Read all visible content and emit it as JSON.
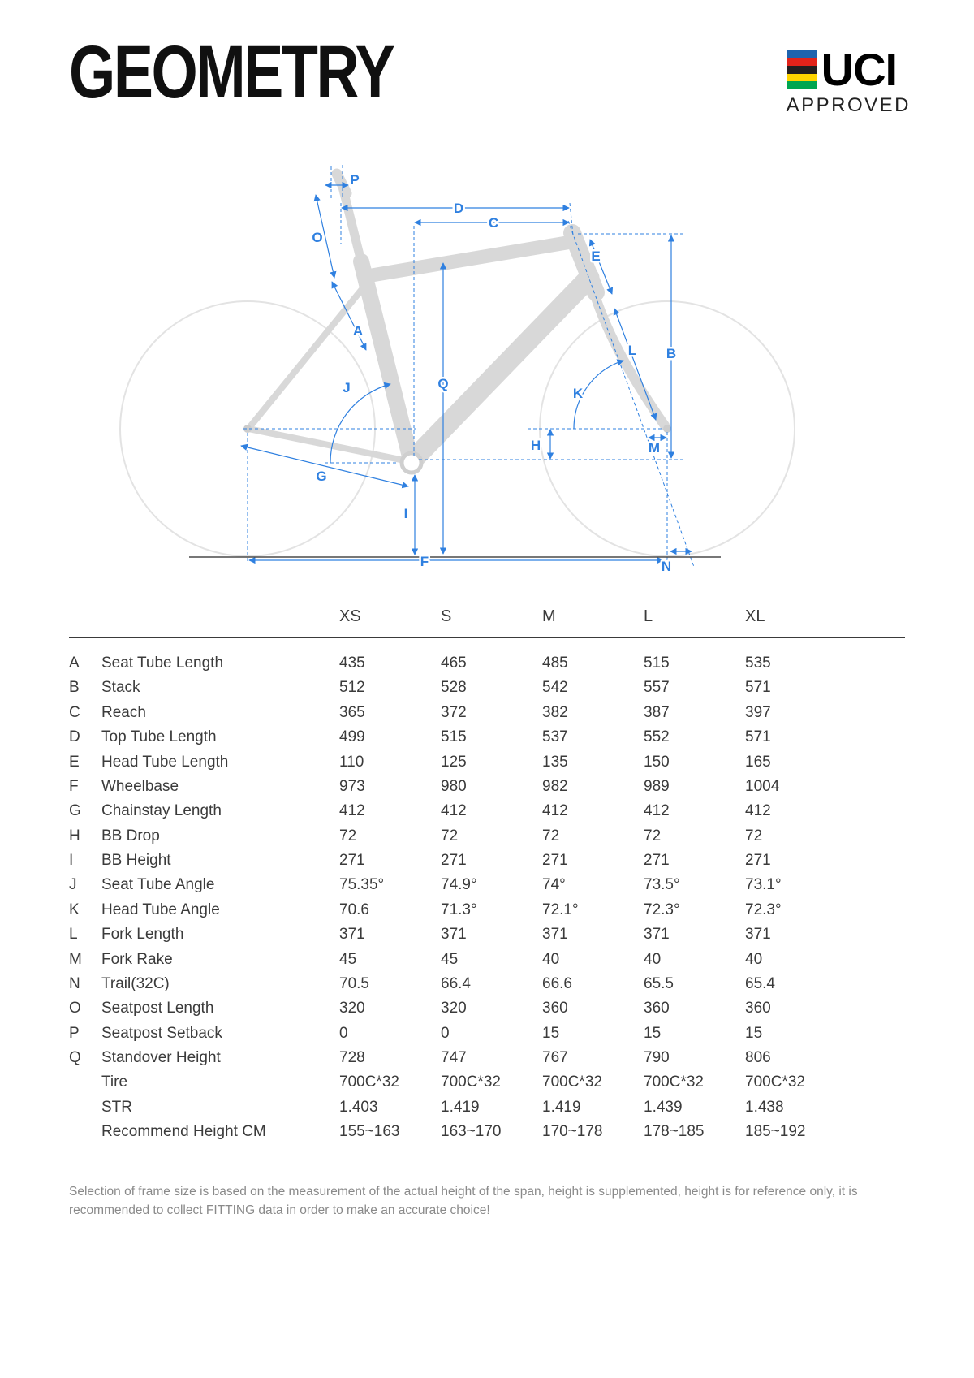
{
  "page": {
    "title": "GEOMETRY"
  },
  "logo": {
    "text": "UCI",
    "subtext": "APPROVED",
    "stripes": [
      "#1f63ae",
      "#e2231a",
      "#231f20",
      "#ffd400",
      "#00a650"
    ]
  },
  "accent_color": "#2f80e0",
  "diagram": {
    "labels": {
      "a": "A",
      "b": "B",
      "c": "C",
      "d": "D",
      "e": "E",
      "f": "F",
      "g": "G",
      "h": "H",
      "i": "I",
      "j": "J",
      "k": "K",
      "l": "L",
      "m": "M",
      "n": "N",
      "o": "O",
      "p": "P",
      "q": "Q"
    }
  },
  "table": {
    "sizes": [
      "XS",
      "S",
      "M",
      "L",
      "XL"
    ],
    "rows": [
      {
        "key": "A",
        "name": "Seat Tube Length",
        "values": [
          "435",
          "465",
          "485",
          "515",
          "535"
        ]
      },
      {
        "key": "B",
        "name": "Stack",
        "values": [
          "512",
          "528",
          "542",
          "557",
          "571"
        ]
      },
      {
        "key": "C",
        "name": "Reach",
        "values": [
          "365",
          "372",
          "382",
          "387",
          "397"
        ]
      },
      {
        "key": "D",
        "name": "Top Tube Length",
        "values": [
          "499",
          "515",
          "537",
          "552",
          "571"
        ]
      },
      {
        "key": "E",
        "name": "Head Tube Length",
        "values": [
          "110",
          "125",
          "135",
          "150",
          "165"
        ]
      },
      {
        "key": "F",
        "name": "Wheelbase",
        "values": [
          "973",
          "980",
          "982",
          "989",
          "1004"
        ]
      },
      {
        "key": "G",
        "name": "Chainstay Length",
        "values": [
          "412",
          "412",
          "412",
          "412",
          "412"
        ]
      },
      {
        "key": "H",
        "name": "BB Drop",
        "values": [
          "72",
          "72",
          "72",
          "72",
          "72"
        ]
      },
      {
        "key": "I",
        "name": "BB Height",
        "values": [
          "271",
          "271",
          "271",
          "271",
          "271"
        ]
      },
      {
        "key": "J",
        "name": "Seat Tube Angle",
        "values": [
          "75.35°",
          "74.9°",
          "74°",
          "73.5°",
          "73.1°"
        ]
      },
      {
        "key": "K",
        "name": "Head Tube Angle",
        "values": [
          "70.6",
          "71.3°",
          "72.1°",
          "72.3°",
          "72.3°"
        ]
      },
      {
        "key": "L",
        "name": "Fork Length",
        "values": [
          "371",
          "371",
          "371",
          "371",
          "371"
        ]
      },
      {
        "key": "M",
        "name": "Fork Rake",
        "values": [
          "45",
          "45",
          "40",
          "40",
          "40"
        ]
      },
      {
        "key": "N",
        "name": "Trail(32C)",
        "values": [
          "70.5",
          "66.4",
          "66.6",
          "65.5",
          "65.4"
        ]
      },
      {
        "key": "O",
        "name": "Seatpost Length",
        "values": [
          "320",
          "320",
          "360",
          "360",
          "360"
        ]
      },
      {
        "key": "P",
        "name": "Seatpost Setback",
        "values": [
          "0",
          "0",
          "15",
          "15",
          "15"
        ]
      },
      {
        "key": "Q",
        "name": "Standover Height",
        "values": [
          "728",
          "747",
          "767",
          "790",
          "806"
        ]
      },
      {
        "key": "",
        "name": "Tire",
        "values": [
          "700C*32",
          "700C*32",
          "700C*32",
          "700C*32",
          "700C*32"
        ]
      },
      {
        "key": "",
        "name": "STR",
        "values": [
          "1.403",
          "1.419",
          "1.419",
          "1.439",
          "1.438"
        ]
      },
      {
        "key": "",
        "name": "Recommend Height CM",
        "values": [
          "155~163",
          "163~170",
          "170~178",
          "178~185",
          "185~192"
        ]
      }
    ]
  },
  "footer": {
    "note": "Selection of frame size is based on the measurement of the actual height of the span, height is supplemented, height is for reference only, it is recommended to collect FITTING data in order to make an accurate choice!"
  }
}
